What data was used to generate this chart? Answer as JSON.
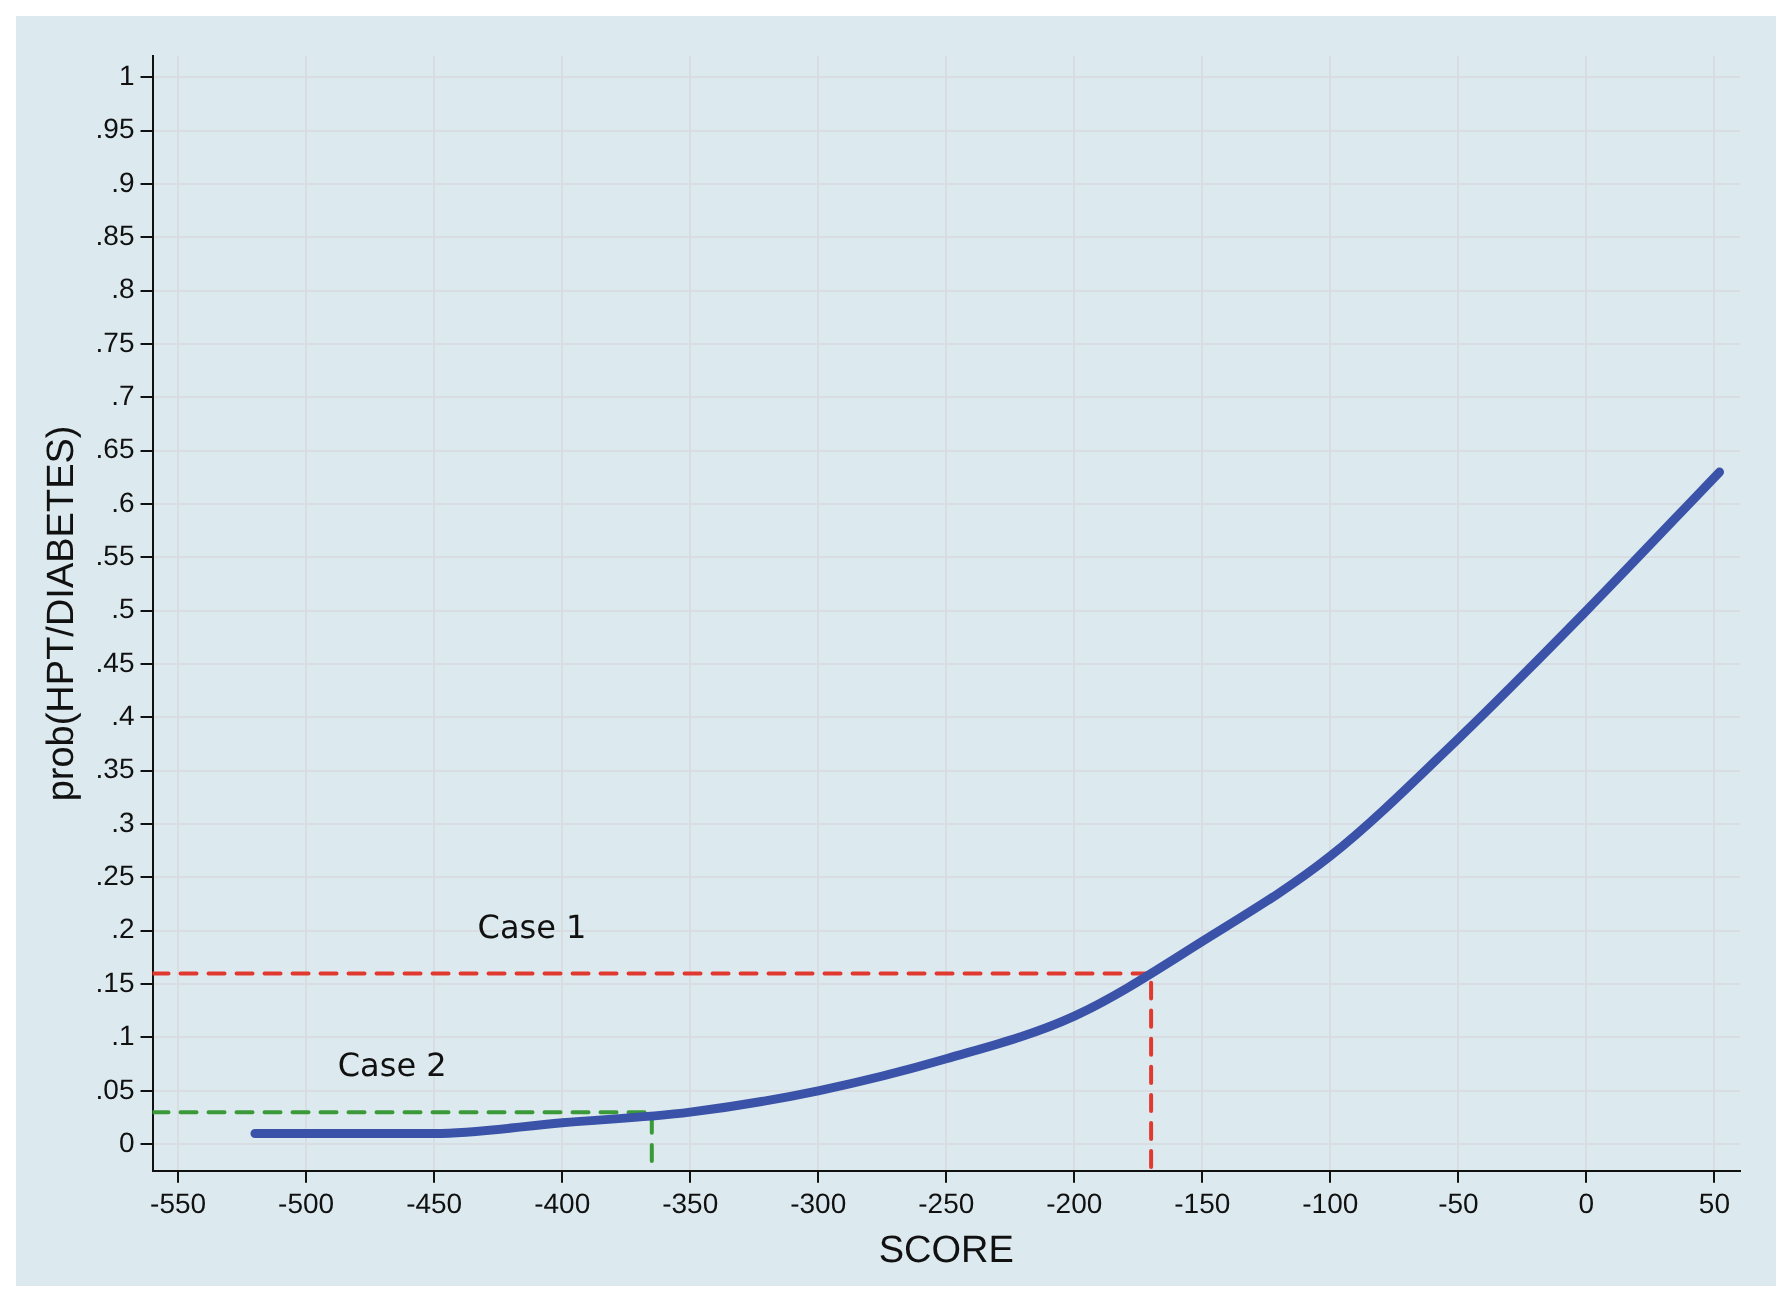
{
  "chart_data": {
    "type": "line",
    "xlabel": "SCORE",
    "ylabel": "prob(HPT/DIABETES)",
    "xlim": [
      -560,
      60
    ],
    "ylim": [
      -0.025,
      1.02
    ],
    "xticks": [
      -550,
      -500,
      -450,
      -400,
      -350,
      -300,
      -250,
      -200,
      -150,
      -100,
      -50,
      0,
      50
    ],
    "yticks": [
      0,
      {
        "value": 0.05,
        "label": ".05"
      },
      {
        "value": 0.1,
        "label": ".1"
      },
      {
        "value": 0.15,
        "label": ".15"
      },
      {
        "value": 0.2,
        "label": ".2"
      },
      {
        "value": 0.25,
        "label": ".25"
      },
      {
        "value": 0.3,
        "label": ".3"
      },
      {
        "value": 0.35,
        "label": ".35"
      },
      {
        "value": 0.4,
        "label": ".4"
      },
      {
        "value": 0.45,
        "label": ".45"
      },
      {
        "value": 0.5,
        "label": ".5"
      },
      {
        "value": 0.55,
        "label": ".55"
      },
      {
        "value": 0.6,
        "label": ".6"
      },
      {
        "value": 0.65,
        "label": ".65"
      },
      {
        "value": 0.7,
        "label": ".7"
      },
      {
        "value": 0.75,
        "label": ".75"
      },
      {
        "value": 0.8,
        "label": ".8"
      },
      {
        "value": 0.85,
        "label": ".85"
      },
      {
        "value": 0.9,
        "label": ".9"
      },
      {
        "value": 0.95,
        "label": ".95"
      },
      1
    ],
    "grid": true,
    "marker": "none",
    "series": [
      {
        "color": "#3a52a8",
        "line_style": "solid",
        "x": [
          -520,
          -500,
          -450,
          -400,
          -350,
          -300,
          -250,
          -200,
          -150,
          -100,
          -50,
          0,
          52
        ],
        "values": [
          0.01,
          0.01,
          0.01,
          0.02,
          0.03,
          0.05,
          0.08,
          0.12,
          0.19,
          0.27,
          0.38,
          0.5,
          0.63
        ]
      },
      {
        "color": "#e03a30",
        "line_style": "dashed",
        "x": [
          -560,
          -170,
          -170
        ],
        "values": [
          0.16,
          0.16,
          -0.025
        ]
      },
      {
        "color": "#3a9a3a",
        "line_style": "dashed",
        "x": [
          -560,
          -365,
          -365
        ],
        "values": [
          0.03,
          0.03,
          -0.025
        ]
      }
    ],
    "annotations": [
      "Case 1",
      "Case 2"
    ]
  }
}
